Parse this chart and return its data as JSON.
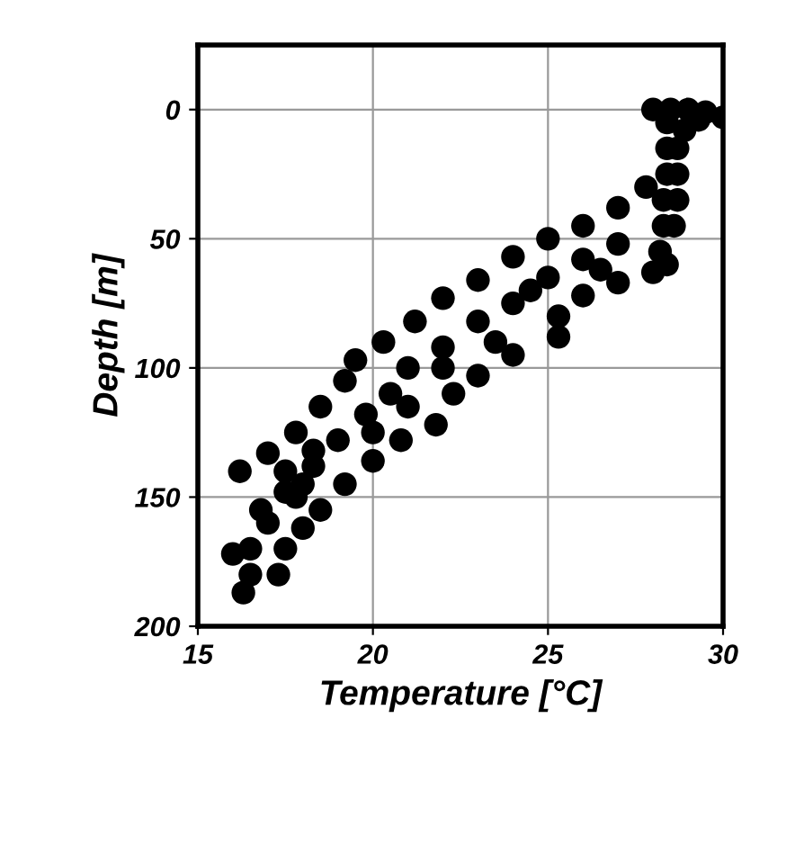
{
  "chart_data": {
    "type": "scatter",
    "xlabel": "Temperature [°C]",
    "ylabel": "Depth [m]",
    "xlim": [
      15,
      30
    ],
    "xticks": [
      15,
      20,
      25,
      30
    ],
    "ylim": [
      200,
      -25
    ],
    "yticks": [
      0,
      50,
      100,
      150,
      200
    ],
    "grid": true,
    "marker": "circle",
    "series": [
      {
        "color": "#000000",
        "x": [
          28.0,
          28.5,
          29.0,
          29.5,
          30.0,
          29.3,
          28.9,
          28.4,
          28.4,
          28.7,
          28.4,
          28.7,
          28.3,
          28.7,
          28.3,
          28.6,
          28.2,
          28.4,
          27.8,
          27.0,
          26.0,
          25.0,
          24.0,
          23.0,
          22.0,
          21.2,
          20.3,
          19.5,
          19.2,
          18.5,
          17.8,
          17.0,
          16.2,
          28.0,
          27.0,
          26.0,
          25.3,
          25.3,
          24.0,
          23.0,
          22.3,
          21.8,
          20.8,
          20.0,
          19.2,
          18.5,
          18.0,
          17.5,
          27.0,
          26.0,
          25.0,
          24.0,
          23.0,
          22.0,
          21.0,
          20.5,
          19.8,
          19.0,
          18.3,
          17.5,
          26.5,
          24.5,
          23.5,
          22.0,
          21.0,
          20.0,
          18.0,
          16.0,
          16.5,
          17.0,
          16.5,
          16.3,
          17.3,
          17.8,
          16.8,
          17.5,
          18.3
        ],
        "values": [
          0,
          0,
          0,
          1,
          3,
          4,
          8,
          5,
          15,
          15,
          25,
          25,
          35,
          35,
          45,
          45,
          55,
          60,
          30,
          38,
          45,
          50,
          57,
          66,
          73,
          82,
          90,
          97,
          105,
          115,
          125,
          133,
          140,
          63,
          67,
          72,
          80,
          88,
          95,
          103,
          110,
          122,
          128,
          136,
          145,
          155,
          162,
          170,
          52,
          58,
          65,
          75,
          82,
          92,
          100,
          110,
          118,
          128,
          138,
          148,
          62,
          70,
          90,
          100,
          115,
          125,
          145,
          172,
          170,
          160,
          180,
          187,
          180,
          150,
          155,
          140,
          132
        ]
      }
    ]
  }
}
